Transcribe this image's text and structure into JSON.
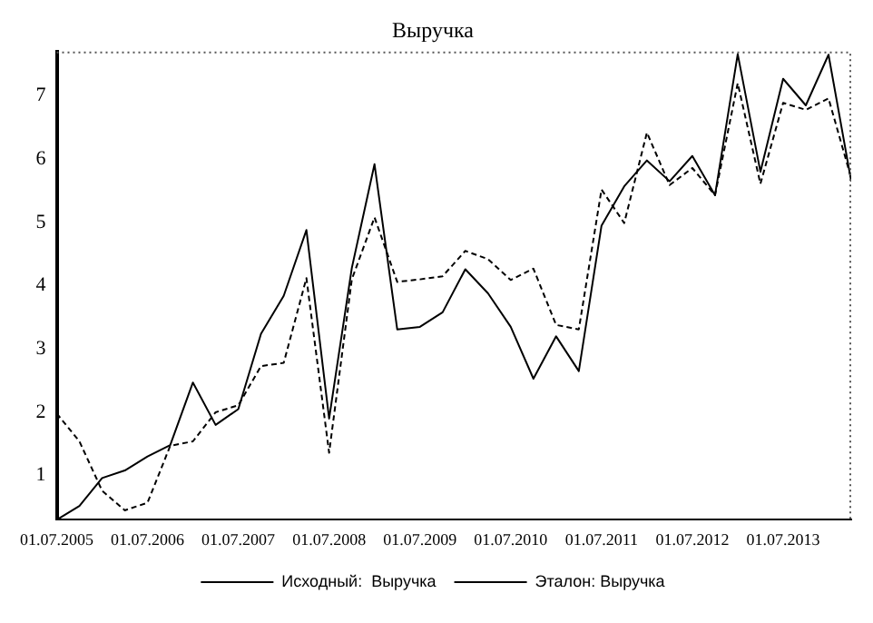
{
  "chart_data": {
    "type": "line",
    "title": "Выручка",
    "x": [
      "2005-07",
      "2005-10",
      "2006-01",
      "2006-04",
      "2006-07",
      "2006-10",
      "2007-01",
      "2007-04",
      "2007-07",
      "2007-10",
      "2008-01",
      "2008-04",
      "2008-07",
      "2008-10",
      "2009-01",
      "2009-04",
      "2009-07",
      "2009-10",
      "2010-01",
      "2010-04",
      "2010-07",
      "2010-10",
      "2011-01",
      "2011-04",
      "2011-07",
      "2011-10",
      "2012-01",
      "2012-04",
      "2012-07",
      "2012-10",
      "2013-01",
      "2013-04",
      "2013-07",
      "2013-10",
      "2014-01",
      "2014-04"
    ],
    "series": [
      {
        "name": "Исходный:  Выручка",
        "color": "#000000",
        "line_style": "solid",
        "values": [
          0.3,
          0.52,
          0.96,
          1.08,
          1.3,
          1.48,
          2.47,
          1.8,
          2.05,
          3.24,
          3.84,
          4.88,
          1.9,
          4.28,
          5.92,
          3.31,
          3.35,
          3.58,
          4.26,
          3.88,
          3.35,
          2.53,
          3.2,
          2.65,
          4.95,
          5.57,
          5.98,
          5.65,
          6.05,
          5.43,
          7.66,
          5.8,
          7.27,
          6.85,
          7.65,
          5.65
        ]
      },
      {
        "name": "Эталон: Выручка",
        "color": "#000000",
        "line_style": "dashed",
        "values": [
          1.98,
          1.54,
          0.76,
          0.45,
          0.57,
          1.47,
          1.54,
          2.0,
          2.11,
          2.73,
          2.78,
          4.12,
          1.36,
          4.1,
          5.08,
          4.06,
          4.1,
          4.15,
          4.55,
          4.42,
          4.09,
          4.27,
          3.38,
          3.31,
          5.52,
          4.99,
          6.42,
          5.59,
          5.86,
          5.43,
          7.2,
          5.61,
          6.89,
          6.78,
          6.96,
          5.7
        ]
      }
    ],
    "xlim": [
      "2005-07",
      "2014-04"
    ],
    "xticks": [
      {
        "value": "2005-07-01",
        "label": "01.07.2005"
      },
      {
        "value": "2006-07-01",
        "label": "01.07.2006"
      },
      {
        "value": "2007-07-01",
        "label": "01.07.2007"
      },
      {
        "value": "2008-07-01",
        "label": "01.07.2008"
      },
      {
        "value": "2009-07-01",
        "label": "01.07.2009"
      },
      {
        "value": "2010-07-01",
        "label": "01.07.2010"
      },
      {
        "value": "2011-07-01",
        "label": "01.07.2011"
      },
      {
        "value": "2012-07-01",
        "label": "01.07.2012"
      },
      {
        "value": "2013-07-01",
        "label": "01.07.2013"
      }
    ],
    "ylim": [
      0.3,
      7.7
    ],
    "yticks": [
      1,
      2,
      3,
      4,
      5,
      6,
      7
    ],
    "grid": false,
    "legend": "bottom",
    "marker": "none"
  }
}
